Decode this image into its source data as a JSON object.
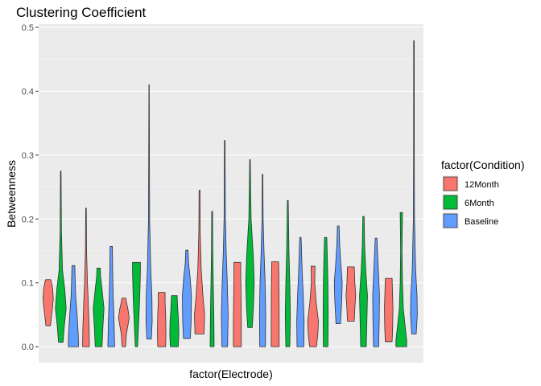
{
  "chart_data": {
    "type": "violin",
    "title": "Clustering Coefficient",
    "xlabel": "factor(Electrode)",
    "ylabel": "Betweenness",
    "ylim": [
      -0.025,
      0.505
    ],
    "yticks": [
      0.0,
      0.1,
      0.2,
      0.3,
      0.4,
      0.5
    ],
    "ytick_labels": [
      "0.0",
      "0.1",
      "0.2",
      "0.3",
      "0.4",
      "0.5"
    ],
    "grid": true,
    "legend": {
      "title": "factor(Condition)",
      "position": "right",
      "entries": [
        {
          "label": "12Month",
          "color": "#F8766D"
        },
        {
          "label": "6Month",
          "color": "#00BA38"
        },
        {
          "label": "Baseline",
          "color": "#619CFF"
        }
      ]
    },
    "violins": [
      {
        "group": "12Month",
        "min": 0.033,
        "max": 0.105,
        "profile": [
          [
            0.033,
            0.4
          ],
          [
            0.045,
            0.55
          ],
          [
            0.06,
            0.75
          ],
          [
            0.075,
            0.9
          ],
          [
            0.09,
            0.8
          ],
          [
            0.1,
            0.6
          ],
          [
            0.105,
            0.45
          ]
        ]
      },
      {
        "group": "6Month",
        "min": 0.007,
        "max": 0.275,
        "profile": [
          [
            0.007,
            0.4
          ],
          [
            0.03,
            0.6
          ],
          [
            0.06,
            0.95
          ],
          [
            0.09,
            0.7
          ],
          [
            0.12,
            0.3
          ],
          [
            0.18,
            0.12
          ],
          [
            0.275,
            0.05
          ]
        ]
      },
      {
        "group": "Baseline",
        "min": 0.0,
        "max": 0.127,
        "profile": [
          [
            0.0,
            0.9
          ],
          [
            0.02,
            0.85
          ],
          [
            0.05,
            0.65
          ],
          [
            0.08,
            0.4
          ],
          [
            0.11,
            0.3
          ],
          [
            0.127,
            0.25
          ]
        ]
      },
      {
        "group": "12Month",
        "min": 0.0,
        "max": 0.217,
        "profile": [
          [
            0.0,
            0.6
          ],
          [
            0.03,
            0.55
          ],
          [
            0.07,
            0.4
          ],
          [
            0.1,
            0.25
          ],
          [
            0.15,
            0.1
          ],
          [
            0.217,
            0.05
          ]
        ]
      },
      {
        "group": "6Month",
        "min": 0.0,
        "max": 0.123,
        "profile": [
          [
            0.0,
            0.6
          ],
          [
            0.03,
            0.75
          ],
          [
            0.06,
            0.95
          ],
          [
            0.09,
            0.6
          ],
          [
            0.11,
            0.35
          ],
          [
            0.123,
            0.3
          ]
        ]
      },
      {
        "group": "Baseline",
        "min": 0.0,
        "max": 0.157,
        "profile": [
          [
            0.0,
            0.6
          ],
          [
            0.04,
            0.5
          ],
          [
            0.08,
            0.35
          ],
          [
            0.12,
            0.25
          ],
          [
            0.157,
            0.2
          ]
        ]
      },
      {
        "group": "12Month",
        "min": 0.0,
        "max": 0.076,
        "profile": [
          [
            0.0,
            0.3
          ],
          [
            0.02,
            0.45
          ],
          [
            0.045,
            0.95
          ],
          [
            0.06,
            0.7
          ],
          [
            0.07,
            0.45
          ],
          [
            0.076,
            0.35
          ]
        ]
      },
      {
        "group": "6Month",
        "min": 0.0,
        "max": 0.132,
        "profile": [
          [
            0.0,
            0.2
          ],
          [
            0.03,
            0.35
          ],
          [
            0.07,
            0.55
          ],
          [
            0.1,
            0.65
          ],
          [
            0.12,
            0.7
          ],
          [
            0.132,
            0.7
          ]
        ]
      },
      {
        "group": "Baseline",
        "min": 0.012,
        "max": 0.41,
        "profile": [
          [
            0.012,
            0.4
          ],
          [
            0.04,
            0.55
          ],
          [
            0.08,
            0.5
          ],
          [
            0.12,
            0.3
          ],
          [
            0.2,
            0.1
          ],
          [
            0.3,
            0.06
          ],
          [
            0.41,
            0.03
          ]
        ]
      },
      {
        "group": "12Month",
        "min": 0.0,
        "max": 0.085,
        "profile": [
          [
            0.0,
            0.7
          ],
          [
            0.02,
            0.75
          ],
          [
            0.05,
            0.7
          ],
          [
            0.07,
            0.6
          ],
          [
            0.085,
            0.6
          ]
        ]
      },
      {
        "group": "6Month",
        "min": 0.0,
        "max": 0.08,
        "profile": [
          [
            0.0,
            0.7
          ],
          [
            0.02,
            0.8
          ],
          [
            0.04,
            0.75
          ],
          [
            0.06,
            0.6
          ],
          [
            0.08,
            0.5
          ]
        ]
      },
      {
        "group": "Baseline",
        "min": 0.013,
        "max": 0.151,
        "profile": [
          [
            0.013,
            0.6
          ],
          [
            0.04,
            0.75
          ],
          [
            0.08,
            0.8
          ],
          [
            0.11,
            0.55
          ],
          [
            0.13,
            0.3
          ],
          [
            0.151,
            0.2
          ]
        ]
      },
      {
        "group": "12Month",
        "min": 0.02,
        "max": 0.245,
        "profile": [
          [
            0.02,
            0.8
          ],
          [
            0.05,
            0.9
          ],
          [
            0.08,
            0.6
          ],
          [
            0.12,
            0.3
          ],
          [
            0.18,
            0.12
          ],
          [
            0.245,
            0.08
          ]
        ]
      },
      {
        "group": "6Month",
        "min": 0.0,
        "max": 0.212,
        "profile": [
          [
            0.0,
            0.35
          ],
          [
            0.05,
            0.3
          ],
          [
            0.1,
            0.2
          ],
          [
            0.15,
            0.12
          ],
          [
            0.212,
            0.08
          ]
        ]
      },
      {
        "group": "Baseline",
        "min": 0.0,
        "max": 0.323,
        "profile": [
          [
            0.0,
            0.5
          ],
          [
            0.05,
            0.6
          ],
          [
            0.1,
            0.45
          ],
          [
            0.15,
            0.25
          ],
          [
            0.2,
            0.12
          ],
          [
            0.323,
            0.05
          ]
        ]
      },
      {
        "group": "12Month",
        "min": 0.0,
        "max": 0.132,
        "profile": [
          [
            0.0,
            0.7
          ],
          [
            0.04,
            0.7
          ],
          [
            0.08,
            0.65
          ],
          [
            0.11,
            0.6
          ],
          [
            0.132,
            0.6
          ]
        ]
      },
      {
        "group": "6Month",
        "min": 0.03,
        "max": 0.293,
        "profile": [
          [
            0.03,
            0.4
          ],
          [
            0.06,
            0.6
          ],
          [
            0.1,
            0.75
          ],
          [
            0.14,
            0.6
          ],
          [
            0.2,
            0.2
          ],
          [
            0.293,
            0.05
          ]
        ]
      },
      {
        "group": "Baseline",
        "min": 0.0,
        "max": 0.27,
        "profile": [
          [
            0.0,
            0.5
          ],
          [
            0.05,
            0.55
          ],
          [
            0.1,
            0.45
          ],
          [
            0.15,
            0.25
          ],
          [
            0.2,
            0.1
          ],
          [
            0.27,
            0.05
          ]
        ]
      },
      {
        "group": "12Month",
        "min": 0.0,
        "max": 0.133,
        "profile": [
          [
            0.0,
            0.7
          ],
          [
            0.04,
            0.7
          ],
          [
            0.08,
            0.68
          ],
          [
            0.11,
            0.65
          ],
          [
            0.133,
            0.6
          ]
        ]
      },
      {
        "group": "6Month",
        "min": 0.0,
        "max": 0.229,
        "profile": [
          [
            0.0,
            0.35
          ],
          [
            0.05,
            0.45
          ],
          [
            0.1,
            0.35
          ],
          [
            0.15,
            0.2
          ],
          [
            0.229,
            0.08
          ]
        ]
      },
      {
        "group": "Baseline",
        "min": 0.0,
        "max": 0.171,
        "profile": [
          [
            0.0,
            0.6
          ],
          [
            0.04,
            0.65
          ],
          [
            0.08,
            0.5
          ],
          [
            0.12,
            0.3
          ],
          [
            0.171,
            0.12
          ]
        ]
      },
      {
        "group": "12Month",
        "min": 0.0,
        "max": 0.126,
        "profile": [
          [
            0.0,
            0.6
          ],
          [
            0.02,
            0.85
          ],
          [
            0.04,
            0.95
          ],
          [
            0.07,
            0.55
          ],
          [
            0.1,
            0.3
          ],
          [
            0.126,
            0.35
          ]
        ]
      },
      {
        "group": "6Month",
        "min": 0.0,
        "max": 0.171,
        "profile": [
          [
            0.0,
            0.4
          ],
          [
            0.05,
            0.45
          ],
          [
            0.1,
            0.4
          ],
          [
            0.14,
            0.3
          ],
          [
            0.171,
            0.2
          ]
        ]
      },
      {
        "group": "Baseline",
        "min": 0.036,
        "max": 0.189,
        "profile": [
          [
            0.036,
            0.4
          ],
          [
            0.07,
            0.6
          ],
          [
            0.1,
            0.7
          ],
          [
            0.13,
            0.45
          ],
          [
            0.16,
            0.25
          ],
          [
            0.189,
            0.15
          ]
        ]
      },
      {
        "group": "12Month",
        "min": 0.04,
        "max": 0.125,
        "profile": [
          [
            0.04,
            0.6
          ],
          [
            0.06,
            0.7
          ],
          [
            0.08,
            0.85
          ],
          [
            0.1,
            0.7
          ],
          [
            0.125,
            0.6
          ]
        ]
      },
      {
        "group": "6Month",
        "min": 0.0,
        "max": 0.204,
        "profile": [
          [
            0.0,
            0.5
          ],
          [
            0.04,
            0.6
          ],
          [
            0.08,
            0.7
          ],
          [
            0.12,
            0.4
          ],
          [
            0.16,
            0.2
          ],
          [
            0.204,
            0.12
          ]
        ]
      },
      {
        "group": "Baseline",
        "min": 0.0,
        "max": 0.17,
        "profile": [
          [
            0.0,
            0.45
          ],
          [
            0.04,
            0.55
          ],
          [
            0.08,
            0.6
          ],
          [
            0.12,
            0.4
          ],
          [
            0.17,
            0.15
          ]
        ]
      },
      {
        "group": "12Month",
        "min": 0.008,
        "max": 0.107,
        "profile": [
          [
            0.008,
            0.6
          ],
          [
            0.03,
            0.7
          ],
          [
            0.06,
            0.75
          ],
          [
            0.09,
            0.65
          ],
          [
            0.107,
            0.6
          ]
        ]
      },
      {
        "group": "6Month",
        "min": 0.0,
        "max": 0.21,
        "profile": [
          [
            0.0,
            0.95
          ],
          [
            0.01,
            0.95
          ],
          [
            0.03,
            0.7
          ],
          [
            0.06,
            0.35
          ],
          [
            0.1,
            0.2
          ],
          [
            0.15,
            0.12
          ],
          [
            0.21,
            0.2
          ]
        ]
      },
      {
        "group": "Baseline",
        "min": 0.02,
        "max": 0.479,
        "profile": [
          [
            0.02,
            0.4
          ],
          [
            0.05,
            0.6
          ],
          [
            0.08,
            0.55
          ],
          [
            0.12,
            0.3
          ],
          [
            0.2,
            0.1
          ],
          [
            0.3,
            0.06
          ],
          [
            0.479,
            0.05
          ]
        ]
      }
    ]
  }
}
